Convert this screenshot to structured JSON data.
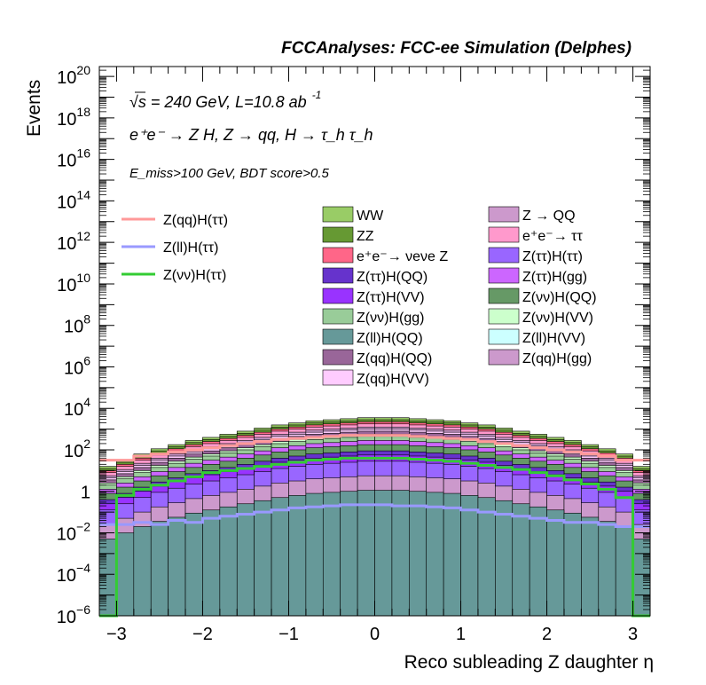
{
  "header": {
    "title": "FCCAnalyses: FCC-ee Simulation (Delphes)"
  },
  "annotations": {
    "energy": "√s = 240 GeV, L=10.8 ab",
    "energy_sup": "-1",
    "process": "e⁺e⁻ → Z H, Z → qq, H → τ_h τ_h",
    "cuts": "E_miss>100 GeV, BDT score>0.5"
  },
  "colors": {
    "WW": "#99cc66",
    "ZZ": "#669933",
    "nunuZ": "#ff6688",
    "Z_QQ": "#cc99cc",
    "tautau": "#ff99cc",
    "Ztautau_Htautau": "#9966ff",
    "Ztautau_HQQ": "#6633cc",
    "Ztautau_Hgg": "#cc66ff",
    "Ztautau_HVV": "#9933ff",
    "Znunu_HQQ": "#669966",
    "Znunu_Hgg": "#99cc99",
    "Znunu_HVV": "#ccffcc",
    "Zll_HQQ": "#669999",
    "Zll_HVV": "#ccffff",
    "Zqq_HQQ": "#996699",
    "Zqq_Hgg": "#cc99cc",
    "Zqq_HVV": "#ffccff",
    "sig_qq": "#ff9999",
    "sig_ll": "#9999ff",
    "sig_nunu": "#33cc33"
  },
  "chart_data": {
    "type": "area",
    "title": "FCCAnalyses: FCC-ee Simulation (Delphes)",
    "xlabel": "Reco subleading Z daughter η",
    "ylabel": "Events",
    "xlim": [
      -3.2,
      3.2
    ],
    "ylim": [
      1e-06,
      3e+20
    ],
    "log_y": true,
    "x_ticks": [
      -3,
      -2,
      -1,
      0,
      1,
      2,
      3
    ],
    "x_tick_labels": [
      "−3",
      "−2",
      "−1",
      "0",
      "1",
      "2",
      "3"
    ],
    "y_ticks": [
      {
        "value": 1e-06,
        "base": "10",
        "exp": "−6"
      },
      {
        "value": 0.0001,
        "base": "10",
        "exp": "−4"
      },
      {
        "value": 0.01,
        "base": "10",
        "exp": "−2"
      },
      {
        "value": 1,
        "base": "1",
        "exp": ""
      },
      {
        "value": 100.0,
        "base": "10",
        "exp": "2"
      },
      {
        "value": 10000.0,
        "base": "10",
        "exp": "4"
      },
      {
        "value": 1000000.0,
        "base": "10",
        "exp": "6"
      },
      {
        "value": 100000000.0,
        "base": "10",
        "exp": "8"
      },
      {
        "value": 10000000000.0,
        "base": "10",
        "exp": "10"
      },
      {
        "value": 1000000000000.0,
        "base": "10",
        "exp": "12"
      },
      {
        "value": 100000000000000.0,
        "base": "10",
        "exp": "14"
      },
      {
        "value": 1e+16,
        "base": "10",
        "exp": "16"
      },
      {
        "value": 1e+18,
        "base": "10",
        "exp": "18"
      },
      {
        "value": 1e+20,
        "base": "10",
        "exp": "20"
      }
    ],
    "bin_edges": [
      -3.2,
      -3.0,
      -2.8,
      -2.6,
      -2.4,
      -2.2,
      -2.0,
      -1.8,
      -1.6,
      -1.4,
      -1.2,
      -1.0,
      -0.8,
      -0.6,
      -0.4,
      -0.2,
      0.0,
      0.2,
      0.4,
      0.6,
      0.8,
      1.0,
      1.2,
      1.4,
      1.6,
      1.8,
      2.0,
      2.2,
      2.4,
      2.6,
      2.8,
      3.0,
      3.2
    ],
    "stack_profile_log10": [
      1.2,
      1.5,
      1.8,
      2.05,
      2.25,
      2.45,
      2.6,
      2.75,
      2.9,
      3.05,
      3.2,
      3.3,
      3.4,
      3.45,
      3.5,
      3.55,
      3.55,
      3.55,
      3.5,
      3.45,
      3.4,
      3.3,
      3.2,
      3.05,
      2.9,
      2.75,
      2.6,
      2.45,
      2.25,
      2.05,
      1.8,
      1.2
    ],
    "stack_layers": [
      {
        "name": "Z(ll)H(VV)",
        "key": "Zll_HVV",
        "offset": -20.0
      },
      {
        "name": "Z(ll)H(QQ)",
        "key": "Zll_HQQ",
        "offset": -3.5
      },
      {
        "name": "Z(qq)H(gg)",
        "key": "Zqq_Hgg",
        "offset": -2.8
      },
      {
        "name": "Z(ττ)H(ττ)",
        "key": "Ztautau_Htautau",
        "offset": -2.1
      },
      {
        "name": "Z(ττ)H(VV)",
        "key": "Ztautau_HVV",
        "offset": -1.8
      },
      {
        "name": "Z(ττ)H(QQ)",
        "key": "Ztautau_HQQ",
        "offset": -1.6
      },
      {
        "name": "Z(νν)H(QQ)",
        "key": "Znunu_HQQ",
        "offset": -1.3
      },
      {
        "name": "Z(ττ)H(gg)",
        "key": "Ztautau_Hgg",
        "offset": -1.1
      },
      {
        "name": "Z(νν)H(gg)",
        "key": "Znunu_Hgg",
        "offset": -0.9
      },
      {
        "name": "Z(νν)H(VV)",
        "key": "Znunu_HVV",
        "offset": -0.8
      },
      {
        "name": "Z(qq)H(QQ)",
        "key": "Zqq_HQQ",
        "offset": -0.65
      },
      {
        "name": "Z(qq)H(VV)",
        "key": "Zqq_HVV",
        "offset": -0.55
      },
      {
        "name": "Z → QQ",
        "key": "Z_QQ",
        "offset": -0.45
      },
      {
        "name": "e⁺e⁻ → ττ",
        "key": "tautau",
        "offset": -0.3
      },
      {
        "name": "e⁺e⁻→ νeνe Z",
        "key": "nunuZ",
        "offset": -0.2
      },
      {
        "name": "ZZ",
        "key": "ZZ",
        "offset": -0.1
      },
      {
        "name": "WW",
        "key": "WW",
        "offset": 0.0
      }
    ],
    "lines": [
      {
        "name": "Z(qq)H(ττ)",
        "key": "sig_qq",
        "log10": [
          1.5,
          1.5,
          1.7,
          1.8,
          1.9,
          2.0,
          2.1,
          2.2,
          2.3,
          2.4,
          2.5,
          2.55,
          2.6,
          2.65,
          2.7,
          2.7,
          2.7,
          2.7,
          2.65,
          2.6,
          2.55,
          2.5,
          2.4,
          2.3,
          2.2,
          2.1,
          2.0,
          1.9,
          1.8,
          1.7,
          1.5,
          1.5
        ]
      },
      {
        "name": "Z(ll)H(ττ)",
        "key": "sig_ll",
        "log10": [
          -1.6,
          -1.6,
          -1.5,
          -1.6,
          -1.4,
          -1.5,
          -1.3,
          -1.2,
          -1.1,
          -1.0,
          -0.9,
          -0.8,
          -0.75,
          -0.7,
          -0.65,
          -0.65,
          -0.65,
          -0.7,
          -0.7,
          -0.75,
          -0.8,
          -0.9,
          -1.0,
          -1.1,
          -1.2,
          -1.3,
          -1.4,
          -1.5,
          -1.5,
          -1.6,
          -1.7,
          -1.7
        ]
      },
      {
        "name": "Z(νν)H(ττ)",
        "key": "sig_nunu",
        "log10": [
          -6.0,
          -0.2,
          0.1,
          0.3,
          0.5,
          0.7,
          0.9,
          1.0,
          1.1,
          1.2,
          1.3,
          1.4,
          1.5,
          1.55,
          1.6,
          1.6,
          1.6,
          1.6,
          1.55,
          1.5,
          1.45,
          1.35,
          1.25,
          1.15,
          1.05,
          0.9,
          0.75,
          0.55,
          0.35,
          0.1,
          -0.3,
          -6.0
        ]
      }
    ],
    "grid": false,
    "legend_placement": "top"
  },
  "legend": {
    "signals": [
      {
        "label": "Z(qq)H(ττ)",
        "key": "sig_qq"
      },
      {
        "label": "Z(ll)H(ττ)",
        "key": "sig_ll"
      },
      {
        "label": "Z(νν)H(ττ)",
        "key": "sig_nunu"
      }
    ],
    "col1": [
      {
        "label": "WW",
        "key": "WW"
      },
      {
        "label": "ZZ",
        "key": "ZZ"
      },
      {
        "label": "e⁺e⁻→ νeνe Z",
        "key": "nunuZ"
      },
      {
        "label": "Z(ττ)H(QQ)",
        "key": "Ztautau_HQQ"
      },
      {
        "label": "Z(ττ)H(VV)",
        "key": "Ztautau_HVV"
      },
      {
        "label": "Z(νν)H(gg)",
        "key": "Znunu_Hgg"
      },
      {
        "label": "Z(ll)H(QQ)",
        "key": "Zll_HQQ"
      },
      {
        "label": "Z(qq)H(QQ)",
        "key": "Zqq_HQQ"
      },
      {
        "label": "Z(qq)H(VV)",
        "key": "Zqq_HVV"
      }
    ],
    "col2": [
      {
        "label": "Z → QQ",
        "key": "Z_QQ"
      },
      {
        "label": "e⁺e⁻→ ττ",
        "key": "tautau"
      },
      {
        "label": "Z(ττ)H(ττ)",
        "key": "Ztautau_Htautau"
      },
      {
        "label": "Z(ττ)H(gg)",
        "key": "Ztautau_Hgg"
      },
      {
        "label": "Z(νν)H(QQ)",
        "key": "Znunu_HQQ"
      },
      {
        "label": "Z(νν)H(VV)",
        "key": "Znunu_HVV"
      },
      {
        "label": "Z(ll)H(VV)",
        "key": "Zll_HVV"
      },
      {
        "label": "Z(qq)H(gg)",
        "key": "Zqq_Hgg"
      }
    ]
  }
}
